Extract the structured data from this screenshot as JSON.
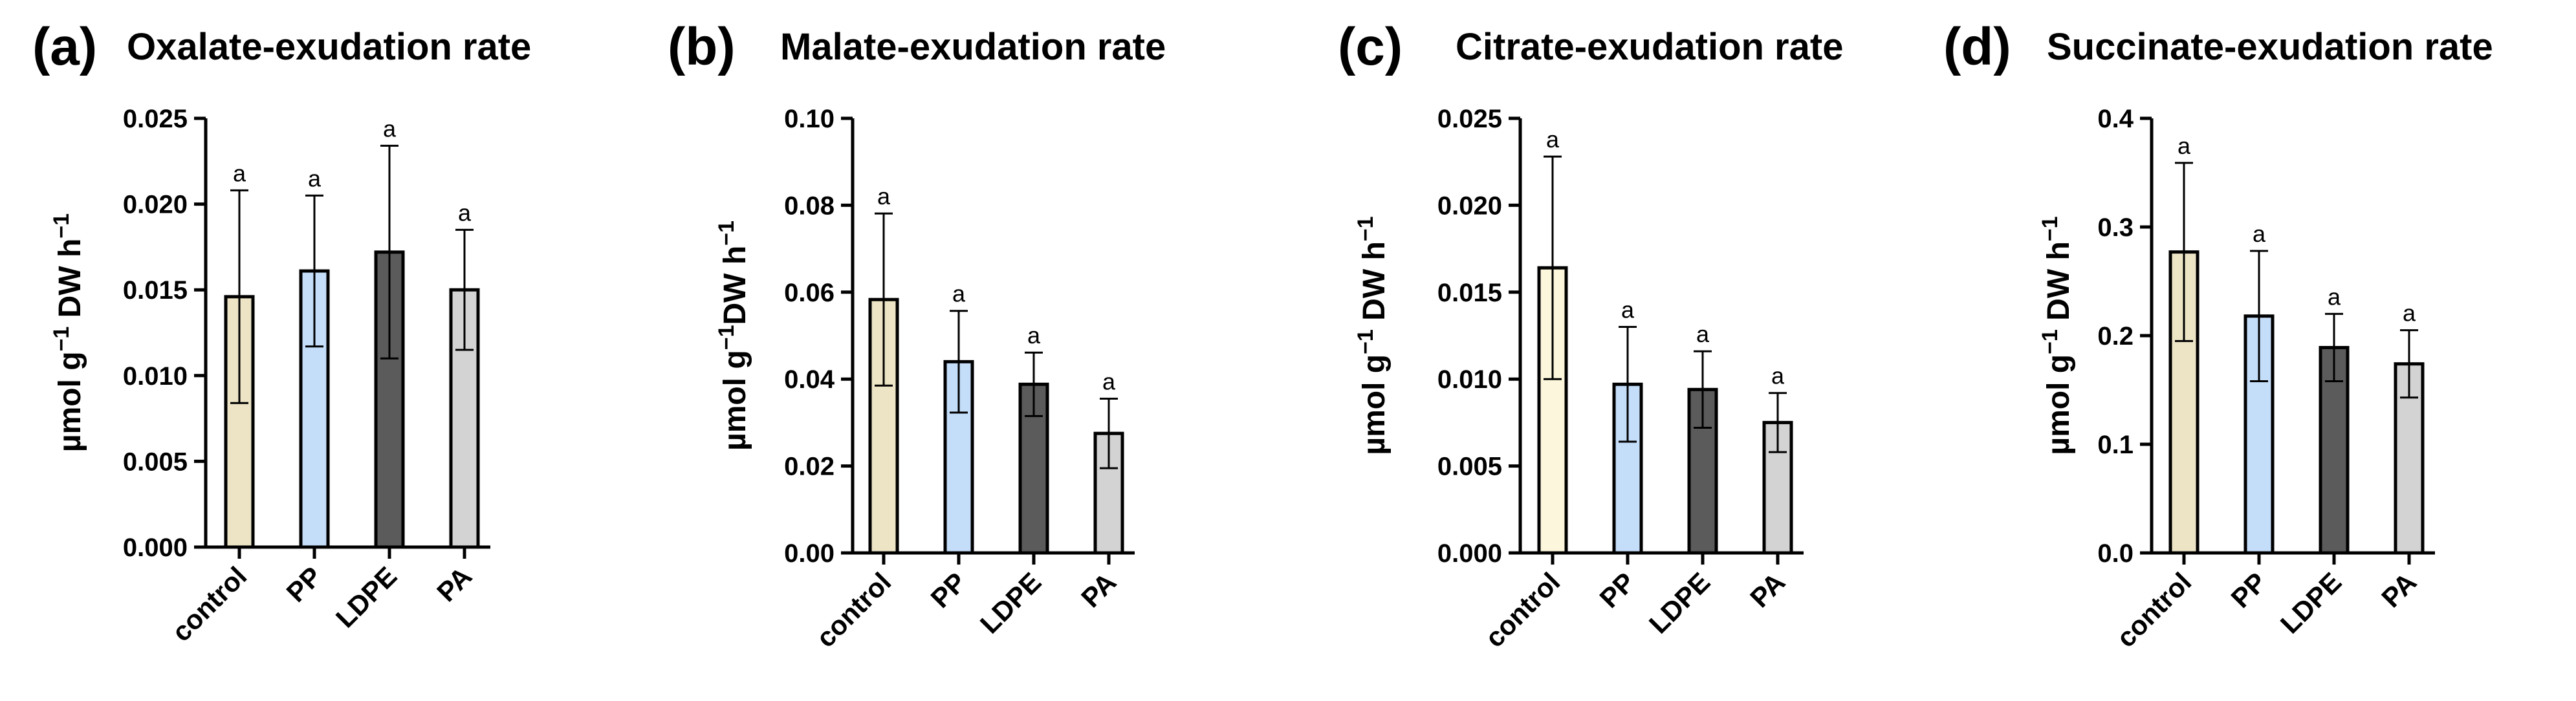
{
  "chart_data": [
    {
      "type": "bar",
      "panel": "(a)",
      "title": "Oxalate-exudation rate",
      "ylabel": {
        "base": "µmol g",
        "sup1": "−1",
        "middle": " DW h",
        "sup2": "−1"
      },
      "ylim": [
        0,
        0.025
      ],
      "yticks": [
        0.0,
        0.005,
        0.01,
        0.015,
        0.02,
        0.025
      ],
      "ytick_labels": [
        "0.000",
        "0.005",
        "0.010",
        "0.015",
        "0.020",
        "0.025"
      ],
      "categories": [
        "control",
        "PP",
        "LDPE",
        "PA"
      ],
      "values": [
        0.0146,
        0.0161,
        0.0172,
        0.015
      ],
      "errors": [
        0.0062,
        0.0044,
        0.0062,
        0.0035
      ],
      "significance": [
        "a",
        "a",
        "a",
        "a"
      ],
      "colors": [
        "#ede4c6",
        "#c4defa",
        "#5b5b5b",
        "#d3d3d3"
      ]
    },
    {
      "type": "bar",
      "panel": "(b)",
      "title": "Malate-exudation rate",
      "ylabel": {
        "base": "µmol g",
        "sup1": "−1",
        "middle": "DW h",
        "sup2": "−1"
      },
      "ylim": [
        0,
        0.1
      ],
      "yticks": [
        0.0,
        0.02,
        0.04,
        0.06,
        0.08,
        0.1
      ],
      "ytick_labels": [
        "0.00",
        "0.02",
        "0.04",
        "0.06",
        "0.08",
        "0.10"
      ],
      "categories": [
        "control",
        "PP",
        "LDPE",
        "PA"
      ],
      "values": [
        0.0583,
        0.044,
        0.0388,
        0.0275
      ],
      "errors": [
        0.0198,
        0.0117,
        0.0073,
        0.008
      ],
      "significance": [
        "a",
        "a",
        "a",
        "a"
      ],
      "colors": [
        "#ede4c6",
        "#c4defa",
        "#5b5b5b",
        "#d3d3d3"
      ]
    },
    {
      "type": "bar",
      "panel": "(c)",
      "title": "Citrate-exudation rate",
      "ylabel": {
        "base": "µmol g",
        "sup1": "−1",
        "middle": " DW h",
        "sup2": "−1"
      },
      "ylim": [
        0,
        0.025
      ],
      "yticks": [
        0.0,
        0.005,
        0.01,
        0.015,
        0.02,
        0.025
      ],
      "ytick_labels": [
        "0.000",
        "0.005",
        "0.010",
        "0.015",
        "0.020",
        "0.025"
      ],
      "categories": [
        "control",
        "PP",
        "LDPE",
        "PA"
      ],
      "values": [
        0.0164,
        0.0097,
        0.0094,
        0.0075
      ],
      "errors": [
        0.0064,
        0.0033,
        0.0022,
        0.0017
      ],
      "significance": [
        "a",
        "a",
        "a",
        "a"
      ],
      "colors": [
        "#fcf7dc",
        "#c4defa",
        "#5b5b5b",
        "#d3d3d3"
      ]
    },
    {
      "type": "bar",
      "panel": "(d)",
      "title": "Succinate-exudation rate",
      "ylabel": {
        "base": "µmol g",
        "sup1": "−1",
        "middle": " DW h",
        "sup2": "−1"
      },
      "ylim": [
        0,
        0.4
      ],
      "yticks": [
        0.0,
        0.1,
        0.2,
        0.3,
        0.4
      ],
      "ytick_labels": [
        "0.0",
        "0.1",
        "0.2",
        "0.3",
        "0.4"
      ],
      "categories": [
        "control",
        "PP",
        "LDPE",
        "PA"
      ],
      "values": [
        0.277,
        0.218,
        0.189,
        0.174
      ],
      "errors": [
        0.082,
        0.06,
        0.031,
        0.031
      ],
      "significance": [
        "a",
        "a",
        "a",
        "a"
      ],
      "colors": [
        "#ede4c6",
        "#c4defa",
        "#5b5b5b",
        "#d3d3d3"
      ]
    }
  ]
}
